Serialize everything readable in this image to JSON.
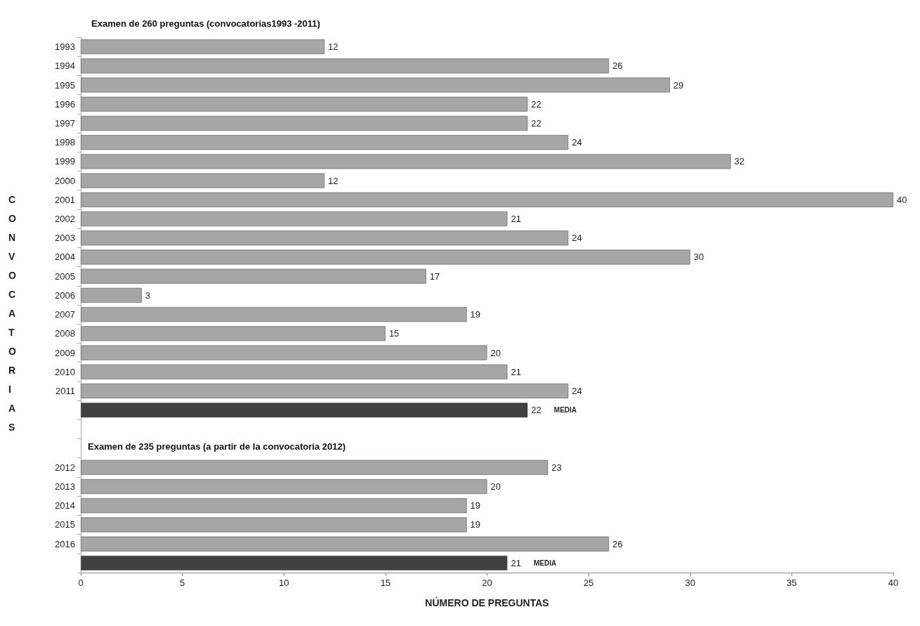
{
  "chart_data": {
    "type": "bar",
    "orientation": "horizontal",
    "title": "Examen de 260 preguntas (convocatorias1993 -2011)",
    "xlabel": "NÚMERO DE PREGUNTAS",
    "ylabel": "CONVOCATORIAS",
    "annotations": [
      "Examen de 235 preguntas (a partir de la convocatoria 2012)"
    ],
    "categories": [
      "1993",
      "1994",
      "1995",
      "1996",
      "1997",
      "1998",
      "1999",
      "2000",
      "2001",
      "2002",
      "2003",
      "2004",
      "2005",
      "2006",
      "2007",
      "2008",
      "2009",
      "2010",
      "2011",
      null,
      null,
      null,
      "2012",
      "2013",
      "2014",
      "2015",
      "2016",
      null
    ],
    "series": [
      {
        "color": "#a6a6a6",
        "values": [
          12,
          26,
          29,
          22,
          22,
          24,
          32,
          12,
          40,
          21,
          24,
          30,
          17,
          3,
          19,
          15,
          20,
          21,
          24,
          null,
          null,
          null,
          23,
          20,
          19,
          19,
          26,
          null
        ]
      },
      {
        "name": "MEDIA",
        "color": "#404040",
        "values": [
          null,
          null,
          null,
          null,
          null,
          null,
          null,
          null,
          null,
          null,
          null,
          null,
          null,
          null,
          null,
          null,
          null,
          null,
          null,
          22,
          null,
          null,
          null,
          null,
          null,
          null,
          null,
          21
        ]
      }
    ],
    "xlim": [
      0,
      40
    ],
    "xticks": [
      0,
      5,
      10,
      15,
      20,
      25,
      30,
      35,
      40
    ],
    "data_labels": true,
    "grid": false,
    "legend": false
  }
}
